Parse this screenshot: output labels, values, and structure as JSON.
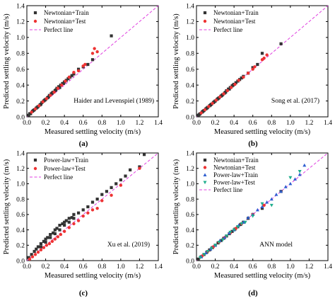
{
  "chart_data": [
    {
      "type": "scatter",
      "panel_label": "(a)",
      "annotation": "Haider and Levenspiel (1989)",
      "xlabel": "Measured settling velocity (m/s)",
      "ylabel": "Predicted settling velocity (m/s)",
      "xlim": [
        0,
        1.4
      ],
      "ylim": [
        0,
        1.4
      ],
      "xticks": [
        "0.0",
        "0.2",
        "0.4",
        "0.6",
        "0.8",
        "1.0",
        "1.2",
        "1.4"
      ],
      "yticks": [
        "0.0",
        "0.2",
        "0.4",
        "0.6",
        "0.8",
        "1.0",
        "1.2",
        "1.4"
      ],
      "legend_position": "top-left",
      "reference_line": {
        "name": "Perfect line",
        "x": [
          0,
          1.4
        ],
        "y": [
          0,
          1.4
        ],
        "color": "#e040e0"
      },
      "series": [
        {
          "name": "Newtonian+Train",
          "marker": "square",
          "color": "#333333",
          "x": [
            0.02,
            0.04,
            0.06,
            0.08,
            0.1,
            0.12,
            0.14,
            0.16,
            0.18,
            0.2,
            0.22,
            0.24,
            0.26,
            0.28,
            0.3,
            0.32,
            0.34,
            0.36,
            0.38,
            0.4,
            0.42,
            0.44,
            0.46,
            0.48,
            0.5,
            0.55,
            0.6,
            0.65,
            0.7,
            0.9,
            0.03,
            0.07,
            0.11,
            0.15,
            0.19,
            0.23,
            0.27,
            0.31,
            0.35,
            0.39
          ],
          "y": [
            0.02,
            0.04,
            0.07,
            0.09,
            0.11,
            0.13,
            0.15,
            0.18,
            0.2,
            0.22,
            0.24,
            0.27,
            0.29,
            0.31,
            0.33,
            0.36,
            0.38,
            0.4,
            0.42,
            0.44,
            0.46,
            0.48,
            0.5,
            0.52,
            0.54,
            0.6,
            0.63,
            0.66,
            0.72,
            1.02,
            0.04,
            0.08,
            0.12,
            0.16,
            0.21,
            0.25,
            0.3,
            0.34,
            0.37,
            0.42
          ]
        },
        {
          "name": "Newtonian+Test",
          "marker": "circle",
          "color": "#ee3333",
          "x": [
            0.05,
            0.09,
            0.13,
            0.17,
            0.21,
            0.25,
            0.29,
            0.33,
            0.37,
            0.41,
            0.45,
            0.5,
            0.55,
            0.6,
            0.62,
            0.7,
            0.72,
            0.75
          ],
          "y": [
            0.06,
            0.1,
            0.14,
            0.19,
            0.23,
            0.27,
            0.31,
            0.36,
            0.4,
            0.45,
            0.5,
            0.56,
            0.58,
            0.64,
            0.66,
            0.8,
            0.86,
            0.82
          ]
        }
      ]
    },
    {
      "type": "scatter",
      "panel_label": "(b)",
      "annotation": "Song et al. (2017)",
      "xlabel": "Measured settling velocity (m/s)",
      "ylabel": "Predicted settling velocity (m/s)",
      "xlim": [
        0,
        1.4
      ],
      "ylim": [
        0,
        1.4
      ],
      "xticks": [
        "0.0",
        "0.2",
        "0.4",
        "0.6",
        "0.8",
        "1.0",
        "1.2",
        "1.4"
      ],
      "yticks": [
        "0.0",
        "0.2",
        "0.4",
        "0.6",
        "0.8",
        "1.0",
        "1.2",
        "1.4"
      ],
      "legend_position": "top-left",
      "reference_line": {
        "name": "Perfect line",
        "x": [
          0,
          1.4
        ],
        "y": [
          0,
          1.4
        ],
        "color": "#e040e0"
      },
      "series": [
        {
          "name": "Newtonian+Train",
          "marker": "square",
          "color": "#333333",
          "x": [
            0.02,
            0.04,
            0.06,
            0.08,
            0.1,
            0.12,
            0.14,
            0.16,
            0.18,
            0.2,
            0.22,
            0.24,
            0.26,
            0.28,
            0.3,
            0.32,
            0.34,
            0.36,
            0.38,
            0.4,
            0.42,
            0.44,
            0.46,
            0.48,
            0.5,
            0.55,
            0.6,
            0.65,
            0.7,
            0.9,
            0.03,
            0.07,
            0.11,
            0.15,
            0.19,
            0.23,
            0.27,
            0.31,
            0.35,
            0.39
          ],
          "y": [
            0.02,
            0.04,
            0.06,
            0.08,
            0.1,
            0.12,
            0.14,
            0.16,
            0.18,
            0.2,
            0.22,
            0.24,
            0.26,
            0.28,
            0.3,
            0.33,
            0.35,
            0.37,
            0.39,
            0.41,
            0.43,
            0.45,
            0.47,
            0.49,
            0.51,
            0.55,
            0.62,
            0.66,
            0.8,
            0.92,
            0.03,
            0.07,
            0.11,
            0.15,
            0.19,
            0.23,
            0.27,
            0.31,
            0.35,
            0.4
          ]
        },
        {
          "name": "Newtonian+Test",
          "marker": "circle",
          "color": "#ee3333",
          "x": [
            0.05,
            0.09,
            0.13,
            0.17,
            0.21,
            0.25,
            0.29,
            0.33,
            0.37,
            0.41,
            0.45,
            0.5,
            0.55,
            0.6,
            0.62,
            0.7,
            0.72,
            0.75
          ],
          "y": [
            0.05,
            0.09,
            0.13,
            0.17,
            0.21,
            0.25,
            0.29,
            0.33,
            0.37,
            0.41,
            0.46,
            0.5,
            0.55,
            0.6,
            0.63,
            0.72,
            0.74,
            0.78
          ]
        }
      ]
    },
    {
      "type": "scatter",
      "panel_label": "(c)",
      "annotation": "Xu et al. (2019)",
      "xlabel": "Measured settling velocity (m/s)",
      "ylabel": "Predicted settling velocity (m/s)",
      "xlim": [
        0,
        1.4
      ],
      "ylim": [
        0,
        1.4
      ],
      "xticks": [
        "0.0",
        "0.2",
        "0.4",
        "0.6",
        "0.8",
        "1.0",
        "1.2",
        "1.4"
      ],
      "yticks": [
        "0.0",
        "0.2",
        "0.4",
        "0.6",
        "0.8",
        "1.0",
        "1.2",
        "1.4"
      ],
      "legend_position": "top-left",
      "reference_line": {
        "name": "Perfect line",
        "x": [
          0,
          1.4
        ],
        "y": [
          0,
          1.4
        ],
        "color": "#e040e0"
      },
      "series": [
        {
          "name": "Power-law+Train",
          "marker": "square",
          "color": "#333333",
          "x": [
            0.02,
            0.05,
            0.08,
            0.1,
            0.12,
            0.15,
            0.18,
            0.2,
            0.22,
            0.25,
            0.28,
            0.3,
            0.32,
            0.35,
            0.38,
            0.4,
            0.42,
            0.45,
            0.48,
            0.5,
            0.55,
            0.6,
            0.65,
            0.7,
            0.75,
            0.8,
            0.85,
            0.9,
            0.95,
            1.0,
            1.05,
            1.1,
            1.2,
            1.25,
            0.15,
            0.2,
            0.25,
            0.3,
            0.35,
            0.4,
            0.45,
            0.5
          ],
          "y": [
            0.04,
            0.08,
            0.12,
            0.15,
            0.18,
            0.22,
            0.25,
            0.28,
            0.3,
            0.34,
            0.36,
            0.4,
            0.42,
            0.46,
            0.48,
            0.5,
            0.52,
            0.55,
            0.56,
            0.6,
            0.62,
            0.66,
            0.7,
            0.76,
            0.8,
            0.86,
            0.9,
            0.95,
            1.0,
            1.05,
            1.1,
            1.18,
            1.22,
            1.38,
            0.18,
            0.24,
            0.3,
            0.35,
            0.4,
            0.46,
            0.5,
            0.55
          ]
        },
        {
          "name": "Power-law+Test",
          "marker": "circle",
          "color": "#ee3333",
          "x": [
            0.03,
            0.06,
            0.09,
            0.12,
            0.15,
            0.18,
            0.21,
            0.24,
            0.27,
            0.3,
            0.33,
            0.36,
            0.4,
            0.45,
            0.5,
            0.55,
            0.6,
            0.65,
            0.7,
            0.75,
            0.8,
            0.9,
            1.0,
            1.2
          ],
          "y": [
            0.02,
            0.05,
            0.08,
            0.11,
            0.14,
            0.17,
            0.2,
            0.22,
            0.25,
            0.28,
            0.31,
            0.34,
            0.38,
            0.43,
            0.48,
            0.52,
            0.58,
            0.62,
            0.66,
            0.68,
            0.78,
            0.85,
            0.98,
            1.2
          ]
        }
      ]
    },
    {
      "type": "scatter",
      "panel_label": "(d)",
      "annotation": "ANN model",
      "xlabel": "Measured settling velocity (m/s)",
      "ylabel": "Predicted settling velocity (m/s)",
      "xlim": [
        0,
        1.4
      ],
      "ylim": [
        0,
        1.4
      ],
      "xticks": [
        "0.0",
        "0.2",
        "0.4",
        "0.6",
        "0.8",
        "1.0",
        "1.2",
        "1.4"
      ],
      "yticks": [
        "0.0",
        "0.2",
        "0.4",
        "0.6",
        "0.8",
        "1.0",
        "1.2",
        "1.4"
      ],
      "legend_position": "top-left",
      "reference_line": {
        "name": "Perfect line",
        "x": [
          0,
          1.4
        ],
        "y": [
          0,
          1.4
        ],
        "color": "#e040e0"
      },
      "series": [
        {
          "name": "Newtonian+Train",
          "marker": "square",
          "color": "#333333",
          "x": [
            0.02,
            0.05,
            0.08,
            0.11,
            0.14,
            0.17,
            0.2,
            0.23,
            0.26,
            0.29,
            0.32,
            0.35,
            0.38,
            0.41,
            0.44,
            0.47,
            0.5,
            0.55,
            0.6,
            0.7,
            0.9
          ],
          "y": [
            0.02,
            0.05,
            0.08,
            0.11,
            0.14,
            0.17,
            0.2,
            0.23,
            0.26,
            0.29,
            0.32,
            0.35,
            0.38,
            0.41,
            0.44,
            0.47,
            0.5,
            0.55,
            0.6,
            0.68,
            0.9
          ]
        },
        {
          "name": "Newtonian+Test",
          "marker": "circle",
          "color": "#ee3333",
          "x": [
            0.06,
            0.12,
            0.18,
            0.24,
            0.3,
            0.36,
            0.42,
            0.48,
            0.6,
            0.72
          ],
          "y": [
            0.06,
            0.12,
            0.18,
            0.24,
            0.3,
            0.36,
            0.42,
            0.48,
            0.6,
            0.72
          ]
        },
        {
          "name": "Power-law+Train",
          "marker": "triangle-up",
          "color": "#2f5fd0",
          "x": [
            0.05,
            0.1,
            0.15,
            0.2,
            0.25,
            0.3,
            0.35,
            0.4,
            0.45,
            0.5,
            0.55,
            0.6,
            0.65,
            0.7,
            0.75,
            0.8,
            0.85,
            0.9,
            0.95,
            1.0,
            1.05,
            1.1,
            1.15
          ],
          "y": [
            0.05,
            0.1,
            0.15,
            0.2,
            0.26,
            0.3,
            0.36,
            0.4,
            0.46,
            0.5,
            0.56,
            0.6,
            0.66,
            0.7,
            0.76,
            0.8,
            0.86,
            0.9,
            0.96,
            1.0,
            1.06,
            1.12,
            1.24
          ]
        },
        {
          "name": "Power-law+Test",
          "marker": "triangle-down",
          "color": "#1fae8e",
          "x": [
            0.04,
            0.08,
            0.12,
            0.16,
            0.2,
            0.24,
            0.28,
            0.32,
            0.36,
            0.4,
            0.44,
            0.48,
            0.52,
            0.6,
            0.7,
            0.8,
            1.0,
            1.1
          ],
          "y": [
            0.04,
            0.08,
            0.12,
            0.16,
            0.2,
            0.24,
            0.27,
            0.32,
            0.37,
            0.4,
            0.44,
            0.48,
            0.5,
            0.58,
            0.74,
            0.72,
            1.08,
            1.16
          ]
        }
      ]
    }
  ]
}
